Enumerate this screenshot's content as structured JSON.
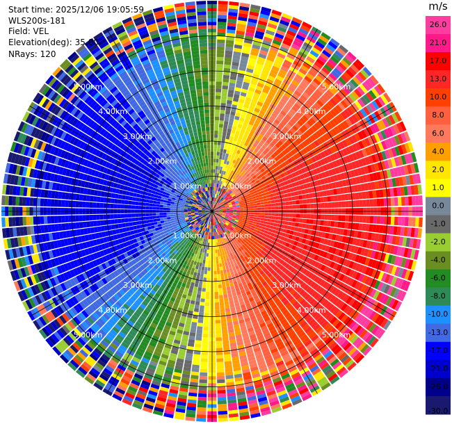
{
  "info": {
    "start_time": "Start time: 2025/12/06 19:05:59",
    "instrument": "WLS200s-181",
    "field": "Field: VEL",
    "elevation": "Elevation(deg): 35.00",
    "nrays": "NRays: 120"
  },
  "chart_data": {
    "type": "heatmap",
    "projection": "polar-ppi",
    "field": "VEL",
    "units": "m/s",
    "elevation_deg": 35.0,
    "n_rays": 120,
    "max_range_km": 6.0,
    "range_ring_labels": [
      "1.00km",
      "2.00km",
      "3.00km",
      "4.00km",
      "5.00km"
    ],
    "range_rings_km": [
      1,
      2,
      3,
      4,
      5
    ],
    "colorbar": {
      "label": "m/s",
      "ticks": [
        "26.0",
        "21.0",
        "17.0",
        "13.0",
        "10.0",
        "8.0",
        "6.0",
        "4.0",
        "2.0",
        "1.0",
        "0.0",
        "-1.0",
        "-2.0",
        "-4.0",
        "-6.0",
        "-8.0",
        "-10.0",
        "-13.0",
        "-17.0",
        "-21.0",
        "-26.0",
        "-30.0"
      ],
      "bins": [
        {
          "min": 26,
          "max": 30,
          "color": "#ff3ca0"
        },
        {
          "min": 21,
          "max": 26,
          "color": "#ff1a8c"
        },
        {
          "min": 17,
          "max": 21,
          "color": "#ff0000"
        },
        {
          "min": 13,
          "max": 17,
          "color": "#ff2626"
        },
        {
          "min": 10,
          "max": 13,
          "color": "#ff4000"
        },
        {
          "min": 8,
          "max": 10,
          "color": "#ff6040"
        },
        {
          "min": 6,
          "max": 8,
          "color": "#ff7a5c"
        },
        {
          "min": 4,
          "max": 6,
          "color": "#ffa000"
        },
        {
          "min": 2,
          "max": 4,
          "color": "#ffe600"
        },
        {
          "min": 1,
          "max": 2,
          "color": "#ffff00"
        },
        {
          "min": 0,
          "max": 1,
          "color": "#778899"
        },
        {
          "min": -1,
          "max": 0,
          "color": "#696969"
        },
        {
          "min": -2,
          "max": -1,
          "color": "#9acd32"
        },
        {
          "min": -4,
          "max": -2,
          "color": "#6b8e23"
        },
        {
          "min": -6,
          "max": -4,
          "color": "#228b22"
        },
        {
          "min": -8,
          "max": -6,
          "color": "#2e8b57"
        },
        {
          "min": -10,
          "max": -8,
          "color": "#1e90ff"
        },
        {
          "min": -13,
          "max": -10,
          "color": "#4169e1"
        },
        {
          "min": -17,
          "max": -13,
          "color": "#0000ff"
        },
        {
          "min": -21,
          "max": -17,
          "color": "#0000cd"
        },
        {
          "min": -26,
          "max": -21,
          "color": "#00008b"
        },
        {
          "min": -30,
          "max": -26,
          "color": "#191970"
        }
      ]
    },
    "wind_pattern": {
      "description_units": "radial velocity in m/s",
      "max_abs_velocity": 17,
      "outbound_azimuth_deg": 100
    }
  }
}
